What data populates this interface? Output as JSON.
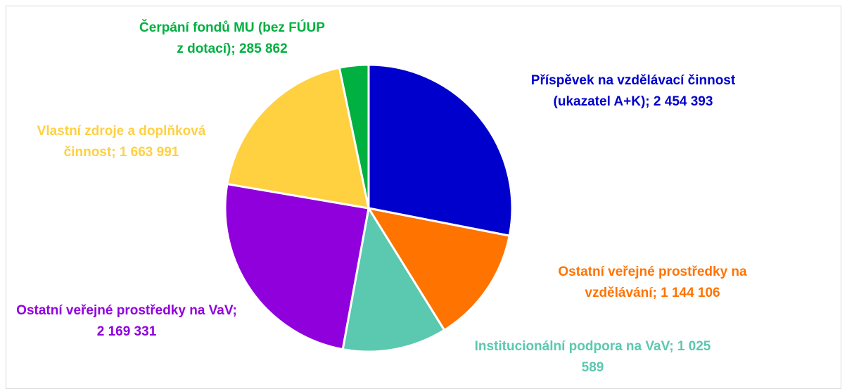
{
  "chart_data": {
    "type": "pie",
    "categories": [
      "Příspěvek na vzdělávací činnost (ukazatel A+K)",
      "Ostatní veřejné prostředky na vzdělávání",
      "Institucionální podpora na VaV",
      "Ostatní veřejné prostředky na VaV",
      "Vlastní zdroje a doplňková činnost",
      "Čerpání fondů MU (bez FÚUP z dotací)"
    ],
    "values": [
      2454393,
      1144106,
      1025589,
      2169331,
      1663991,
      285862
    ],
    "value_labels": [
      "2 454 393",
      "1 144 106",
      "1 025 589",
      "2 169 331",
      "1 663 991",
      "285 862"
    ],
    "label_separator": "; ",
    "colors": [
      "#0000cc",
      "#ff7300",
      "#5bc8b0",
      "#9000dd",
      "#ffd040",
      "#00b040"
    ]
  }
}
